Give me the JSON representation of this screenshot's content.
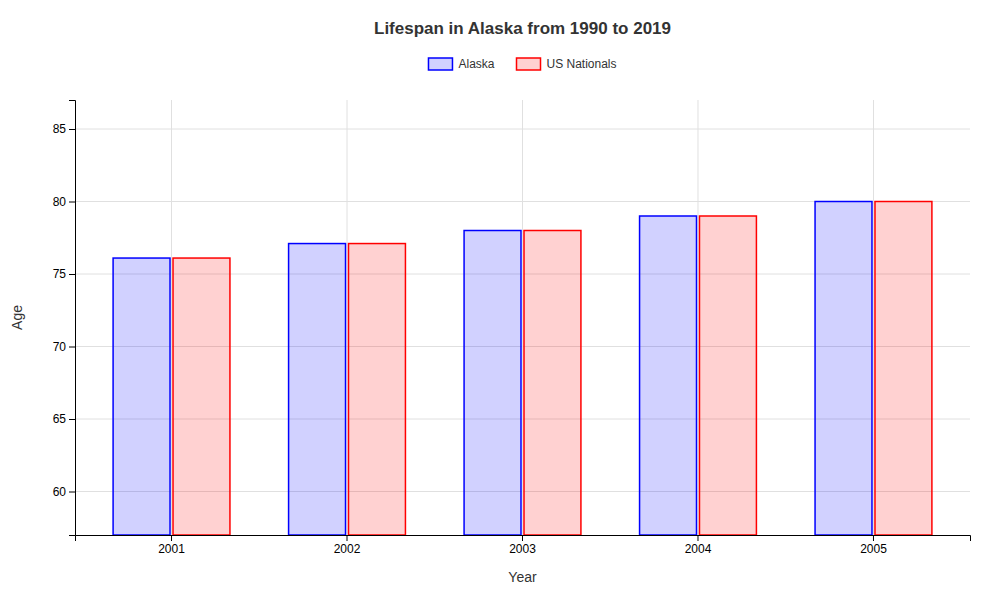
{
  "chart_data": {
    "type": "bar",
    "title": "Lifespan in Alaska from 1990 to 2019",
    "xlabel": "Year",
    "ylabel": "Age",
    "categories": [
      "2001",
      "2002",
      "2003",
      "2004",
      "2005"
    ],
    "series": [
      {
        "name": "Alaska",
        "color": "#0000ff",
        "values": [
          76.1,
          77.1,
          78.0,
          79.0,
          80.0
        ]
      },
      {
        "name": "US Nationals",
        "color": "#ff0000",
        "values": [
          76.1,
          77.1,
          78.0,
          79.0,
          80.0
        ]
      }
    ],
    "ylim": [
      57,
      87
    ],
    "yticks": [
      60,
      65,
      70,
      75,
      80,
      85
    ],
    "grid": true,
    "legend": "top"
  }
}
